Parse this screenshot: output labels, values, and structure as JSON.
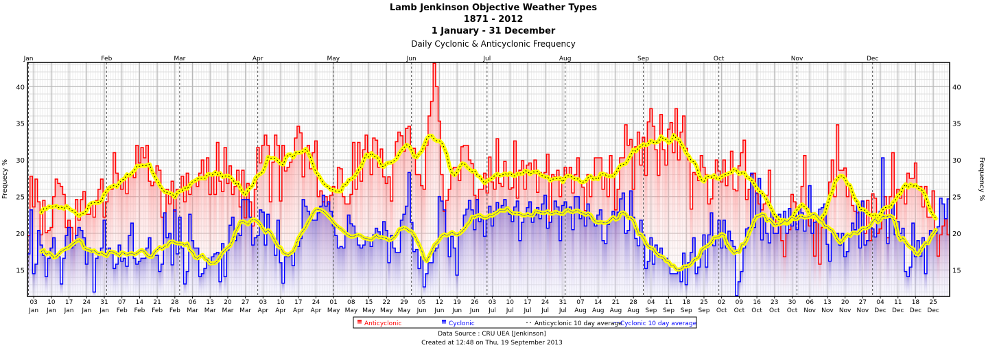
{
  "title": {
    "line1": "Lamb Jenkinson Objective Weather Types",
    "line2": "1871 - 2012",
    "line3": "1 January - 31 December",
    "subtitle": "Daily Cyclonic & Anticyclonic Frequency"
  },
  "footer": {
    "source": "Data Source : CRU UEA [Jenkinson]",
    "created": "Created at 12:48 on Thu, 19 September 2013"
  },
  "chart_data": {
    "type": "bar",
    "title": "Lamb Jenkinson Objective Weather Types 1871 - 2012, 1 January - 31 December",
    "subtitle": "Daily Cyclonic & Anticyclonic Frequency",
    "ylabel_left": "Frequecy %",
    "ylabel_right": "Frequency %",
    "ylim": [
      11.4,
      43.3
    ],
    "yticks": [
      "15",
      "20",
      "25",
      "30",
      "35",
      "40"
    ],
    "grid": true,
    "legend_position": "bottom",
    "days_in_year": 366,
    "months": [
      "Jan",
      "Feb",
      "Mar",
      "Apr",
      "May",
      "Jun",
      "Jul",
      "Aug",
      "Sep",
      "Oct",
      "Nov",
      "Dec"
    ],
    "month_lengths": [
      31,
      29,
      31,
      30,
      31,
      30,
      31,
      31,
      30,
      31,
      30,
      31
    ],
    "xticks": [
      [
        "03",
        "Jan"
      ],
      [
        "10",
        "Jan"
      ],
      [
        "17",
        "Jan"
      ],
      [
        "24",
        "Jan"
      ],
      [
        "31",
        "Jan"
      ],
      [
        "07",
        "Feb"
      ],
      [
        "14",
        "Feb"
      ],
      [
        "21",
        "Feb"
      ],
      [
        "28",
        "Feb"
      ],
      [
        "06",
        "Mar"
      ],
      [
        "13",
        "Mar"
      ],
      [
        "20",
        "Mar"
      ],
      [
        "27",
        "Mar"
      ],
      [
        "03",
        "Apr"
      ],
      [
        "10",
        "Apr"
      ],
      [
        "17",
        "Apr"
      ],
      [
        "24",
        "Apr"
      ],
      [
        "01",
        "May"
      ],
      [
        "08",
        "May"
      ],
      [
        "15",
        "May"
      ],
      [
        "22",
        "May"
      ],
      [
        "29",
        "May"
      ],
      [
        "05",
        "Jun"
      ],
      [
        "12",
        "Jun"
      ],
      [
        "19",
        "Jun"
      ],
      [
        "26",
        "Jun"
      ],
      [
        "03",
        "Jul"
      ],
      [
        "10",
        "Jul"
      ],
      [
        "17",
        "Jul"
      ],
      [
        "24",
        "Jul"
      ],
      [
        "31",
        "Jul"
      ],
      [
        "07",
        "Aug"
      ],
      [
        "14",
        "Aug"
      ],
      [
        "21",
        "Aug"
      ],
      [
        "28",
        "Aug"
      ],
      [
        "04",
        "Sep"
      ],
      [
        "11",
        "Sep"
      ],
      [
        "18",
        "Sep"
      ],
      [
        "25",
        "Sep"
      ],
      [
        "02",
        "Oct"
      ],
      [
        "09",
        "Oct"
      ],
      [
        "16",
        "Oct"
      ],
      [
        "23",
        "Oct"
      ],
      [
        "30",
        "Oct"
      ],
      [
        "06",
        "Nov"
      ],
      [
        "13",
        "Nov"
      ],
      [
        "20",
        "Nov"
      ],
      [
        "27",
        "Nov"
      ],
      [
        "04",
        "Dec"
      ],
      [
        "11",
        "Dec"
      ],
      [
        "18",
        "Dec"
      ],
      [
        "25",
        "Dec"
      ]
    ],
    "average_window_days": 10,
    "legend": [
      "Anticyclonic",
      "Cyclonic",
      "Anticyclonic 10 day average",
      "Cyclonic 10 day average"
    ],
    "colors": {
      "anticyclonic": "#ff0000",
      "cyclonic": "#0000ff",
      "average_halo": "#ffff00",
      "anticyclonic_avg": "#000000",
      "cyclonic_avg": "#0000ff"
    },
    "series": [
      {
        "name": "Anticyclonic",
        "values": [
          19.7,
          27.8,
          23.6,
          27.4,
          24.3,
          19.8,
          24.5,
          20.1,
          20.4,
          20.8,
          25.0,
          27.4,
          26.8,
          26.4,
          25.3,
          20.8,
          21.8,
          20.8,
          18.4,
          24.6,
          21.8,
          24.6,
          25.7,
          22.6,
          22.6,
          24.0,
          22.2,
          24.5,
          26.0,
          27.4,
          22.2,
          24.3,
          26.0,
          26.0,
          31.0,
          28.2,
          26.7,
          26.0,
          27.6,
          25.4,
          27.8,
          28.0,
          27.6,
          32.0,
          29.6,
          31.7,
          30.3,
          32.0,
          27.1,
          26.5,
          27.0,
          29.2,
          28.6,
          22.2,
          22.8,
          26.0,
          24.0,
          27.1,
          23.0,
          26.0,
          26.0,
          27.8,
          24.3,
          28.2,
          25.3,
          27.0,
          27.1,
          26.4,
          28.2,
          30.0,
          27.3,
          30.3,
          25.3,
          28.2,
          25.3,
          32.4,
          27.1,
          25.7,
          31.7,
          26.8,
          29.2,
          25.3,
          26.4,
          28.6,
          23.6,
          28.6,
          22.1,
          26.8,
          24.3,
          21.0,
          26.0,
          31.7,
          29.6,
          32.0,
          33.4,
          32.0,
          24.3,
          29.7,
          33.4,
          32.0,
          24.4,
          32.0,
          28.5,
          29.0,
          29.7,
          30.7,
          33.0,
          34.6,
          33.7,
          27.7,
          31.0,
          32.0,
          28.8,
          31.0,
          32.6,
          25.0,
          25.8,
          24.3,
          25.0,
          24.0,
          25.2,
          26.4,
          25.8,
          29.0,
          28.8,
          25.0,
          24.0,
          24.0,
          25.3,
          32.4,
          26.0,
          32.4,
          27.1,
          31.4,
          33.4,
          31.0,
          28.0,
          33.0,
          32.7,
          29.0,
          31.5,
          27.7,
          26.8,
          27.7,
          24.4,
          30.0,
          32.5,
          33.8,
          33.3,
          31.2,
          34.3,
          34.6,
          31.4,
          31.6,
          28.0,
          28.0,
          26.5,
          26.0,
          32.0,
          36.0,
          38.0,
          43.2,
          40.0,
          35.3,
          28.0,
          23.0,
          24.5,
          26.0,
          28.8,
          29.0,
          29.0,
          27.2,
          31.8,
          32.0,
          32.0,
          30.0,
          29.5,
          25.2,
          24.6,
          26.0,
          26.0,
          28.2,
          25.5,
          30.4,
          27.0,
          26.0,
          32.9,
          26.8,
          26.4,
          29.8,
          28.0,
          26.0,
          26.2,
          32.6,
          24.8,
          28.6,
          29.9,
          26.0,
          29.3,
          29.6,
          28.4,
          30.0,
          25.6,
          28.3,
          28.0,
          28.3,
          30.8,
          21.5,
          28.0,
          27.7,
          28.6,
          25.0,
          27.6,
          29.0,
          28.0,
          29.0,
          25.5,
          28.0,
          30.3,
          27.0,
          26.3,
          23.1,
          28.0,
          25.0,
          27.6,
          30.3,
          30.3,
          30.3,
          26.0,
          28.2,
          25.0,
          30.6,
          28.0,
          23.2,
          26.0,
          30.3,
          30.3,
          34.8,
          32.0,
          32.8,
          26.0,
          31.8,
          33.8,
          29.3,
          33.1,
          27.9,
          35.2,
          37.0,
          34.6,
          31.4,
          27.9,
          36.2,
          31.4,
          29.3,
          34.2,
          35.1,
          31.0,
          37.0,
          30.0,
          33.8,
          36.0,
          31.6,
          30.0,
          23.3,
          28.3,
          28.0,
          27.2,
          30.6,
          29.0,
          28.0,
          24.0,
          24.7,
          27.5,
          30.0,
          28.5,
          27.0,
          30.0,
          26.5,
          28.0,
          31.2,
          26.0,
          25.8,
          29.2,
          31.0,
          32.7,
          24.6,
          26.0,
          28.0,
          28.2,
          25.4,
          24.0,
          23.2,
          24.0,
          25.2,
          28.6,
          23.0,
          21.0,
          22.3,
          21.8,
          19.0,
          16.8,
          20.0,
          20.5,
          25.3,
          24.3,
          22.2,
          23.3,
          26.4,
          30.6,
          23.0,
          21.0,
          22.8,
          16.9,
          22.0,
          15.8,
          20.8,
          22.6,
          24.0,
          27.0,
          30.0,
          25.0,
          34.8,
          28.6,
          28.6,
          28.9,
          25.0,
          26.4,
          23.8,
          23.0,
          22.8,
          23.5,
          24.4,
          20.0,
          24.5,
          19.0,
          25.4,
          24.8,
          20.0,
          20.6,
          22.0,
          25.0,
          19.4,
          25.0,
          31.0,
          22.0,
          26.0,
          24.8,
          26.3,
          24.0,
          28.2,
          27.5,
          27.5,
          29.6,
          26.4,
          26.4,
          23.6,
          26.4,
          22.2,
          22.2,
          25.8,
          20.4,
          16.9,
          19.8,
          21.0,
          22.0,
          19.8
        ]
      },
      {
        "name": "Cyclonic",
        "values": [
          17.2,
          23.2,
          14.5,
          15.8,
          20.4,
          18.4,
          17.0,
          14.1,
          16.6,
          18.0,
          19.4,
          17.0,
          16.8,
          13.1,
          16.6,
          19.7,
          20.8,
          18.0,
          18.4,
          19.7,
          20.8,
          20.4,
          19.4,
          15.8,
          18.0,
          17.4,
          12.0,
          16.6,
          17.3,
          18.0,
          21.8,
          17.0,
          18.0,
          17.3,
          15.2,
          15.8,
          18.4,
          16.2,
          16.6,
          15.5,
          19.7,
          21.4,
          16.6,
          15.8,
          16.2,
          16.6,
          16.6,
          18.0,
          19.4,
          16.9,
          17.0,
          17.0,
          14.8,
          15.8,
          22.8,
          19.4,
          20.0,
          15.7,
          23.2,
          17.2,
          22.2,
          18.0,
          13.1,
          14.8,
          22.6,
          19.0,
          18.0,
          18.0,
          14.1,
          14.5,
          15.2,
          16.6,
          15.7,
          16.8,
          17.2,
          17.4,
          13.4,
          18.6,
          14.1,
          17.7,
          21.1,
          22.2,
          19.0,
          20.0,
          19.7,
          24.6,
          24.6,
          24.6,
          22.2,
          18.4,
          19.4,
          19.7,
          23.2,
          22.9,
          18.4,
          22.6,
          20.0,
          19.5,
          17.0,
          21.8,
          16.0,
          13.2,
          16.8,
          16.8,
          17.0,
          15.6,
          18.4,
          18.2,
          19.3,
          24.6,
          23.7,
          23.0,
          22.5,
          21.8,
          21.8,
          22.8,
          23.7,
          25.2,
          23.7,
          24.3,
          23.0,
          21.0,
          19.7,
          18.0,
          18.2,
          18.0,
          20.0,
          22.5,
          21.3,
          21.0,
          20.0,
          18.4,
          18.0,
          18.4,
          19.5,
          19.0,
          18.2,
          19.8,
          20.7,
          20.2,
          19.2,
          21.6,
          20.4,
          16.0,
          19.7,
          18.0,
          17.4,
          17.4,
          21.8,
          22.6,
          23.7,
          28.3,
          21.5,
          17.5,
          17.8,
          15.2,
          16.8,
          12.7,
          14.5,
          16.0,
          16.0,
          17.6,
          18.0,
          25.0,
          24.4,
          23.2,
          20.0,
          16.8,
          19.6,
          18.0,
          14.3,
          20.0,
          20.5,
          22.5,
          23.3,
          24.5,
          23.2,
          20.5,
          24.6,
          21.6,
          22.0,
          19.6,
          22.0,
          23.7,
          21.0,
          23.0,
          24.2,
          23.0,
          23.8,
          24.6,
          23.6,
          22.6,
          21.6,
          23.6,
          24.4,
          19.0,
          21.5,
          22.5,
          23.5,
          24.3,
          21.5,
          22.5,
          23.5,
          22.0,
          24.0,
          25.2,
          20.7,
          21.5,
          22.8,
          24.4,
          23.6,
          19.0,
          23.8,
          24.3,
          23.0,
          23.6,
          20.5,
          25.0,
          25.0,
          22.0,
          22.6,
          21.0,
          24.0,
          22.0,
          22.0,
          21.0,
          22.5,
          23.2,
          19.0,
          18.6,
          21.2,
          22.0,
          23.0,
          22.0,
          22.9,
          24.7,
          25.5,
          20.0,
          20.4,
          25.8,
          22.2,
          19.3,
          18.3,
          21.8,
          19.8,
          15.2,
          16.2,
          19.4,
          15.8,
          18.4,
          17.4,
          18.0,
          16.4,
          16.6,
          16.0,
          14.5,
          14.5,
          14.5,
          14.8,
          13.4,
          17.3,
          13.0,
          16.0,
          17.4,
          19.4,
          14.5,
          15.4,
          17.2,
          19.8,
          15.4,
          19.8,
          22.8,
          18.3,
          19.3,
          21.8,
          18.0,
          21.8,
          18.0,
          20.3,
          19.0,
          18.2,
          11.5,
          13.4,
          14.8,
          18.0,
          20.6,
          20.8,
          28.2,
          20.8,
          25.5,
          27.5,
          19.1,
          22.6,
          20.0,
          18.7,
          23.0,
          20.0,
          20.0,
          22.6,
          22.0,
          23.0,
          20.0,
          23.4,
          21.0,
          22.9,
          20.5,
          23.5,
          22.8,
          20.3,
          22.3,
          26.5,
          20.0,
          21.5,
          22.0,
          23.3,
          23.5,
          24.0,
          18.5,
          16.2,
          20.0,
          20.0,
          20.0,
          18.4,
          20.0,
          16.8,
          17.5,
          19.8,
          21.4,
          20.5,
          24.0,
          18.0,
          24.4,
          18.4,
          19.0,
          21.0,
          20.6,
          19.5,
          22.5,
          23.0,
          30.3,
          22.0,
          18.6,
          22.0,
          24.0,
          19.8,
          21.6,
          20.0,
          20.7,
          14.8,
          14.1,
          15.4,
          21.4,
          16.8,
          19.0,
          16.9,
          19.4,
          14.5,
          18.7,
          20.4,
          20.0,
          20.0,
          20.9,
          24.8,
          24.0,
          22.0,
          24.7
        ]
      }
    ]
  }
}
